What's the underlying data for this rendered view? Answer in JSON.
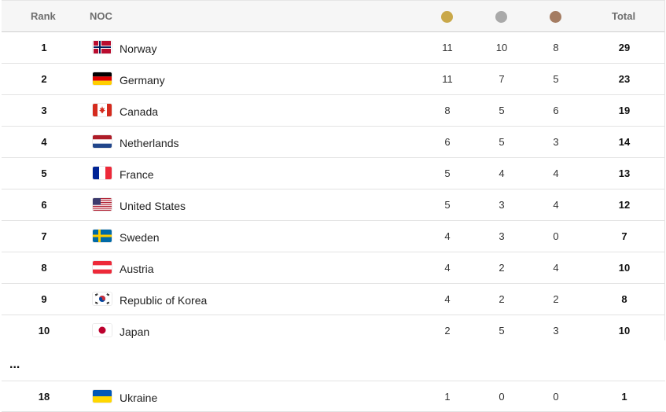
{
  "header": {
    "rank_label": "Rank",
    "noc_label": "NOC",
    "total_label": "Total",
    "gold_color": "#c9a84a",
    "silver_color": "#a9a9a9",
    "bronze_color": "#a47c62"
  },
  "rows": [
    {
      "rank": "1",
      "country": "Norway",
      "gold": "11",
      "silver": "10",
      "bronze": "8",
      "total": "29",
      "flag": "norway-flag-icon"
    },
    {
      "rank": "2",
      "country": "Germany",
      "gold": "11",
      "silver": "7",
      "bronze": "5",
      "total": "23",
      "flag": "germany-flag-icon"
    },
    {
      "rank": "3",
      "country": "Canada",
      "gold": "8",
      "silver": "5",
      "bronze": "6",
      "total": "19",
      "flag": "canada-flag-icon"
    },
    {
      "rank": "4",
      "country": "Netherlands",
      "gold": "6",
      "silver": "5",
      "bronze": "3",
      "total": "14",
      "flag": "netherlands-flag-icon"
    },
    {
      "rank": "5",
      "country": "France",
      "gold": "5",
      "silver": "4",
      "bronze": "4",
      "total": "13",
      "flag": "france-flag-icon"
    },
    {
      "rank": "6",
      "country": "United States",
      "gold": "5",
      "silver": "3",
      "bronze": "4",
      "total": "12",
      "flag": "usa-flag-icon"
    },
    {
      "rank": "7",
      "country": "Sweden",
      "gold": "4",
      "silver": "3",
      "bronze": "0",
      "total": "7",
      "flag": "sweden-flag-icon"
    },
    {
      "rank": "8",
      "country": "Austria",
      "gold": "4",
      "silver": "2",
      "bronze": "4",
      "total": "10",
      "flag": "austria-flag-icon"
    },
    {
      "rank": "9",
      "country": "Republic of Korea",
      "gold": "4",
      "silver": "2",
      "bronze": "2",
      "total": "8",
      "flag": "korea-flag-icon"
    },
    {
      "rank": "10",
      "country": "Japan",
      "gold": "2",
      "silver": "5",
      "bronze": "3",
      "total": "10",
      "flag": "japan-flag-icon"
    }
  ],
  "ellipsis": "...",
  "last_row": {
    "rank": "18",
    "country": "Ukraine",
    "gold": "1",
    "silver": "0",
    "bronze": "0",
    "total": "1",
    "flag": "ukraine-flag-icon"
  }
}
